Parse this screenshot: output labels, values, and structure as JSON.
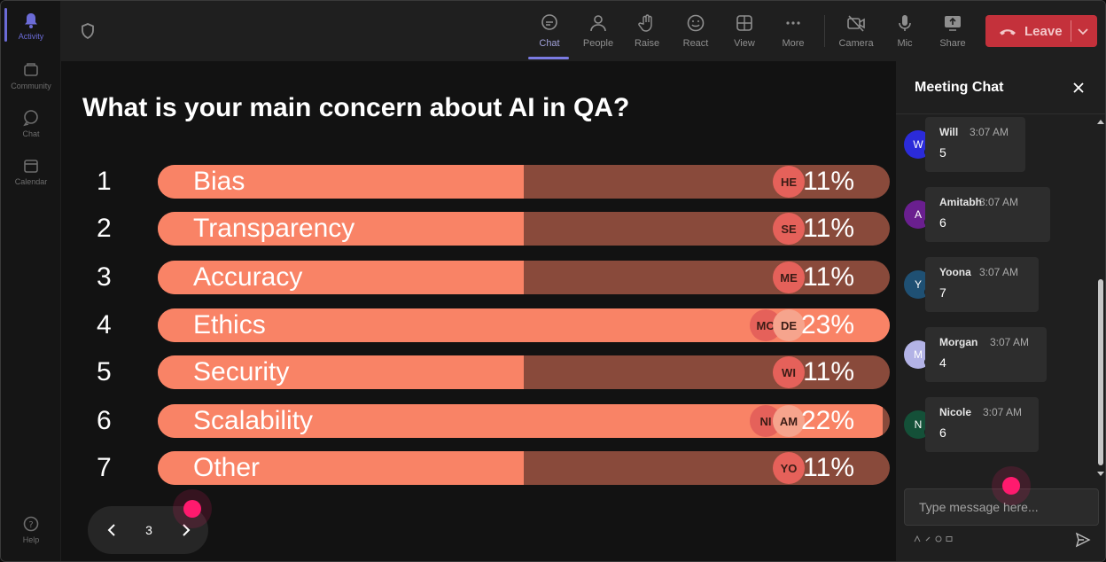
{
  "rail": {
    "items": [
      {
        "label": "Activity",
        "icon": "bell-icon"
      },
      {
        "label": "Community",
        "icon": "community-icon"
      },
      {
        "label": "Chat",
        "icon": "chat-icon"
      },
      {
        "label": "Calendar",
        "icon": "calendar-icon"
      },
      {
        "label": "Help",
        "icon": "help-icon"
      }
    ]
  },
  "toolbar": {
    "chat": "Chat",
    "people": "People",
    "raise": "Raise",
    "react": "React",
    "view": "View",
    "more": "More",
    "camera": "Camera",
    "mic": "Mic",
    "share": "Share",
    "leave": "Leave"
  },
  "poll": {
    "title": "What is your main concern about AI in QA?",
    "options": [
      {
        "num": "1",
        "label": "Bias",
        "percent": "11%",
        "fill": 0.5,
        "avatars": [
          "HE"
        ]
      },
      {
        "num": "2",
        "label": "Transparency",
        "percent": "11%",
        "fill": 0.5,
        "avatars": [
          "SE"
        ]
      },
      {
        "num": "3",
        "label": "Accuracy",
        "percent": "11%",
        "fill": 0.5,
        "avatars": [
          "ME"
        ]
      },
      {
        "num": "4",
        "label": "Ethics",
        "percent": "23%",
        "fill": 1.0,
        "avatars": [
          "MO",
          "DE"
        ]
      },
      {
        "num": "5",
        "label": "Security",
        "percent": "11%",
        "fill": 0.5,
        "avatars": [
          "WI"
        ]
      },
      {
        "num": "6",
        "label": "Scalability",
        "percent": "22%",
        "fill": 0.99,
        "avatars": [
          "NI",
          "AM"
        ]
      },
      {
        "num": "7",
        "label": "Other",
        "percent": "11%",
        "fill": 0.5,
        "avatars": [
          "YO"
        ]
      }
    ],
    "page": "3"
  },
  "chat": {
    "title": "Meeting Chat",
    "messages": [
      {
        "initial": "W",
        "name": "Will",
        "time": "3:07 AM",
        "text": "5",
        "color": "#2b2bd9"
      },
      {
        "initial": "A",
        "name": "Amitabh",
        "time": "3:07 AM",
        "text": "6",
        "color": "#6a1f8f"
      },
      {
        "initial": "Y",
        "name": "Yoona",
        "time": "3:07 AM",
        "text": "7",
        "color": "#1f5073"
      },
      {
        "initial": "M",
        "name": "Morgan",
        "time": "3:07 AM",
        "text": "4",
        "color": "#b3b3e6"
      },
      {
        "initial": "N",
        "name": "Nicole",
        "time": "3:07 AM",
        "text": "6",
        "color": "#145038"
      }
    ],
    "placeholder": "Type message here..."
  },
  "colors": {
    "bar_fill": "#f98366",
    "bar_track": "#894a3b",
    "leave": "#c4313b",
    "accent": "#7b7be3",
    "cursor": "#ff1a6e"
  }
}
